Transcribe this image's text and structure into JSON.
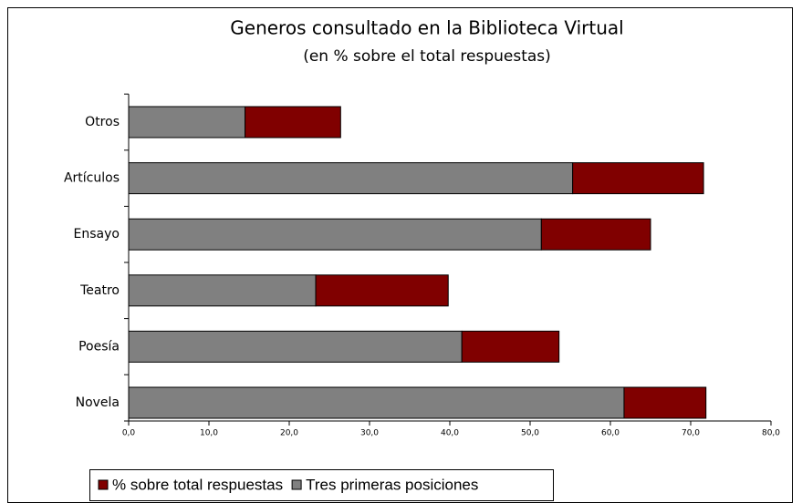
{
  "chart_data": {
    "type": "stacked_bar_horizontal",
    "title": "Generos consultado en la Biblioteca Virtual",
    "subtitle": "(en % sobre el total respuestas)",
    "categories": [
      "Otros",
      "Artículos",
      "Ensayo",
      "Teatro",
      "Poesía",
      "Novela"
    ],
    "series": [
      {
        "name": "Tres primeras posiciones",
        "color": "#808080",
        "values": [
          14.5,
          55.3,
          51.4,
          23.3,
          41.5,
          61.7
        ]
      },
      {
        "name": "% sobre total respuestas",
        "color": "#800000",
        "values": [
          11.9,
          16.3,
          13.6,
          16.5,
          12.1,
          10.2
        ]
      }
    ],
    "xlim": [
      0,
      80
    ],
    "xticks": [
      {
        "value": 0,
        "label": "0,0"
      },
      {
        "value": 10,
        "label": "10,0"
      },
      {
        "value": 20,
        "label": "20,0"
      },
      {
        "value": 30,
        "label": "30,0"
      },
      {
        "value": 40,
        "label": "40,0"
      },
      {
        "value": 50,
        "label": "50,0"
      },
      {
        "value": 60,
        "label": "60,0"
      },
      {
        "value": 70,
        "label": "70,0"
      },
      {
        "value": 80,
        "label": "80,0"
      }
    ],
    "legend": "bottom"
  }
}
